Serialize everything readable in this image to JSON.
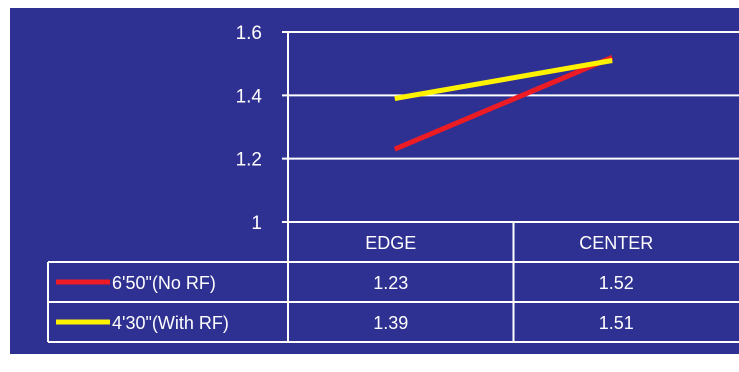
{
  "chart_data": {
    "type": "line",
    "categories": [
      "EDGE",
      "CENTER"
    ],
    "series": [
      {
        "name": "6'50\"(No RF)",
        "values": [
          1.23,
          1.52
        ],
        "color": "#ed1c24",
        "value_labels": [
          "1.23",
          "1.52"
        ]
      },
      {
        "name": "4'30\"(With RF)",
        "values": [
          1.39,
          1.51
        ],
        "color": "#fff200",
        "value_labels": [
          "1.39",
          "1.51"
        ]
      }
    ],
    "y_ticks": [
      "1.6",
      "1.4",
      "1.2",
      "1"
    ],
    "ylim": [
      1,
      1.6
    ],
    "grid": true,
    "legend": "data table below chart",
    "background_color": "#2e3192",
    "gridline_color": "#ffffff"
  }
}
